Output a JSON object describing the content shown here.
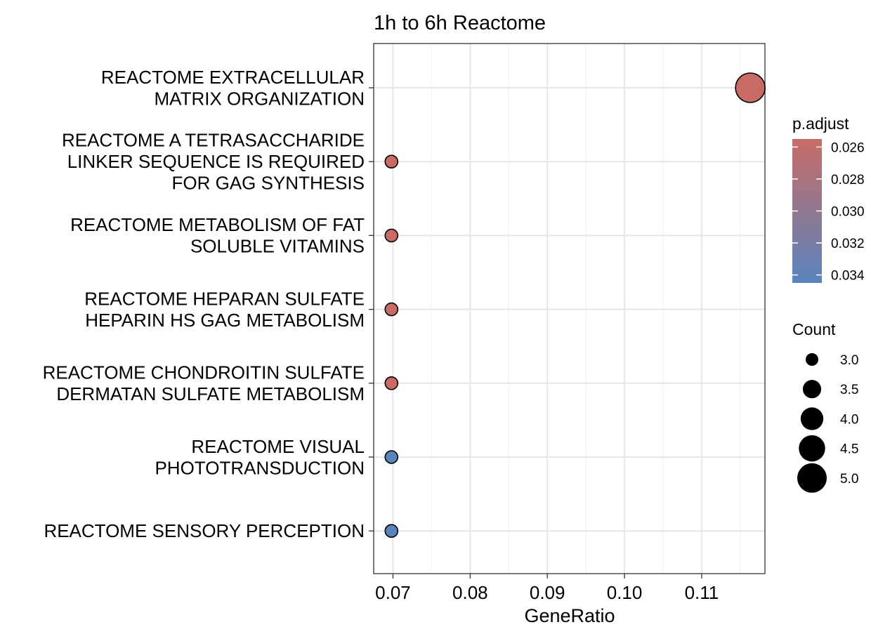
{
  "chart_data": {
    "type": "scatter",
    "title": "1h to 6h Reactome",
    "xlabel": "GeneRatio",
    "ylabel": "",
    "xlim": [
      0.0675,
      0.1182
    ],
    "x_ticks": [
      "0.07",
      "0.08",
      "0.09",
      "0.10",
      "0.11"
    ],
    "x_tick_values": [
      0.07,
      0.08,
      0.09,
      0.1,
      0.11
    ],
    "grid": true,
    "legend_position": "right",
    "points": [
      {
        "term": [
          "REACTOME EXTRACELLULAR",
          "MATRIX ORGANIZATION"
        ],
        "gene_ratio": 0.1163,
        "count": 5,
        "p_adjust": 0.0255
      },
      {
        "term": [
          "REACTOME A TETRASACCHARIDE",
          "LINKER SEQUENCE IS REQUIRED",
          "FOR GAG SYNTHESIS"
        ],
        "gene_ratio": 0.0698,
        "count": 3,
        "p_adjust": 0.0255
      },
      {
        "term": [
          "REACTOME METABOLISM OF FAT",
          "SOLUBLE VITAMINS"
        ],
        "gene_ratio": 0.0698,
        "count": 3,
        "p_adjust": 0.0255
      },
      {
        "term": [
          "REACTOME HEPARAN SULFATE",
          "HEPARIN HS GAG METABOLISM"
        ],
        "gene_ratio": 0.0698,
        "count": 3,
        "p_adjust": 0.0255
      },
      {
        "term": [
          "REACTOME CHONDROITIN SULFATE",
          "DERMATAN SULFATE METABOLISM"
        ],
        "gene_ratio": 0.0698,
        "count": 3,
        "p_adjust": 0.0255
      },
      {
        "term": [
          "REACTOME VISUAL",
          "PHOTOTRANSDUCTION"
        ],
        "gene_ratio": 0.0698,
        "count": 3,
        "p_adjust": 0.0345
      },
      {
        "term": [
          "REACTOME SENSORY PERCEPTION"
        ],
        "gene_ratio": 0.0698,
        "count": 3,
        "p_adjust": 0.0345
      }
    ],
    "color_legend": {
      "title": "p.adjust",
      "ticks": [
        "0.026",
        "0.028",
        "0.030",
        "0.032",
        "0.034"
      ],
      "tick_values": [
        0.026,
        0.028,
        0.03,
        0.032,
        0.034
      ],
      "range": [
        0.0255,
        0.0345
      ],
      "low_color": "#c86b66",
      "high_color": "#5a84bd"
    },
    "size_legend": {
      "title": "Count",
      "labels": [
        "3.0",
        "3.5",
        "4.0",
        "4.5",
        "5.0"
      ],
      "values": [
        3.0,
        3.5,
        4.0,
        4.5,
        5.0
      ]
    }
  }
}
